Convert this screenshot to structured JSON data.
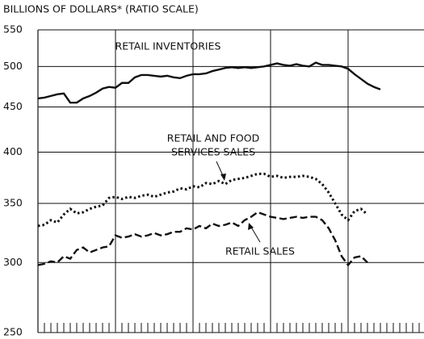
{
  "chart_data": {
    "type": "line",
    "title": "BILLIONS OF DOLLARS* (RATIO SCALE)",
    "log_scale": true,
    "grid": true,
    "categories": [
      null,
      null,
      null,
      null,
      null,
      null,
      null,
      null,
      null,
      null,
      null,
      null,
      null,
      null,
      null,
      null,
      null,
      null,
      null,
      null,
      null,
      null,
      null,
      null,
      null,
      null,
      null,
      null,
      null,
      null,
      null,
      null,
      null,
      null,
      null,
      null,
      null,
      null,
      null,
      null,
      null,
      null,
      null,
      null,
      null,
      null,
      null,
      null,
      null,
      null,
      null,
      null,
      null,
      null,
      null,
      null,
      null,
      null,
      null,
      null
    ],
    "ylim": [
      250,
      550
    ],
    "yticks": [
      250,
      300,
      350,
      400,
      450,
      500,
      550
    ],
    "series": [
      {
        "name": "RETAIL INVENTORIES",
        "color": "#111111",
        "dash": "solid",
        "values": [
          460,
          461,
          463,
          465,
          466,
          455,
          455,
          460,
          463,
          467,
          472,
          474,
          473,
          479,
          479,
          486,
          489,
          489,
          488,
          487,
          488,
          486,
          485,
          488,
          490,
          490,
          491,
          494,
          496,
          498,
          499,
          498,
          499,
          498,
          499,
          500,
          502,
          504,
          502,
          501,
          503,
          501,
          500,
          505,
          502,
          502,
          501,
          500,
          497,
          490,
          484,
          478,
          474,
          471,
          null,
          null,
          null,
          null,
          null,
          null
        ]
      },
      {
        "name": "RETAIL AND FOOD SERVICES SALES",
        "color": "#111111",
        "dash": "dotted",
        "values": [
          330,
          331,
          335,
          333,
          340,
          345,
          341,
          342,
          345,
          347,
          348,
          355,
          356,
          354,
          356,
          355,
          357,
          358,
          356,
          358,
          360,
          361,
          364,
          363,
          366,
          365,
          369,
          368,
          371,
          368,
          372,
          373,
          374,
          376,
          378,
          378,
          375,
          376,
          374,
          375,
          375,
          376,
          375,
          373,
          368,
          360,
          350,
          340,
          335,
          343,
          345,
          340,
          null,
          null,
          null,
          null,
          null,
          null,
          null,
          null
        ]
      },
      {
        "name": "RETAIL SALES",
        "color": "#111111",
        "dash": "dashed",
        "values": [
          298,
          299,
          301,
          300,
          305,
          303,
          310,
          312,
          308,
          310,
          312,
          313,
          322,
          320,
          321,
          323,
          321,
          322,
          324,
          322,
          323,
          325,
          325,
          328,
          327,
          330,
          328,
          332,
          330,
          331,
          333,
          330,
          335,
          338,
          342,
          340,
          338,
          337,
          336,
          337,
          338,
          337,
          338,
          338,
          335,
          328,
          318,
          305,
          298,
          304,
          305,
          300,
          null,
          null,
          null,
          null,
          null,
          null,
          null,
          null
        ]
      }
    ],
    "annotations": [
      {
        "lines": [
          "RETAIL INVENTORIES"
        ]
      },
      {
        "lines": [
          "RETAIL AND FOOD",
          "SERVICES SALES"
        ]
      },
      {
        "lines": [
          "RETAIL SALES"
        ]
      }
    ]
  }
}
